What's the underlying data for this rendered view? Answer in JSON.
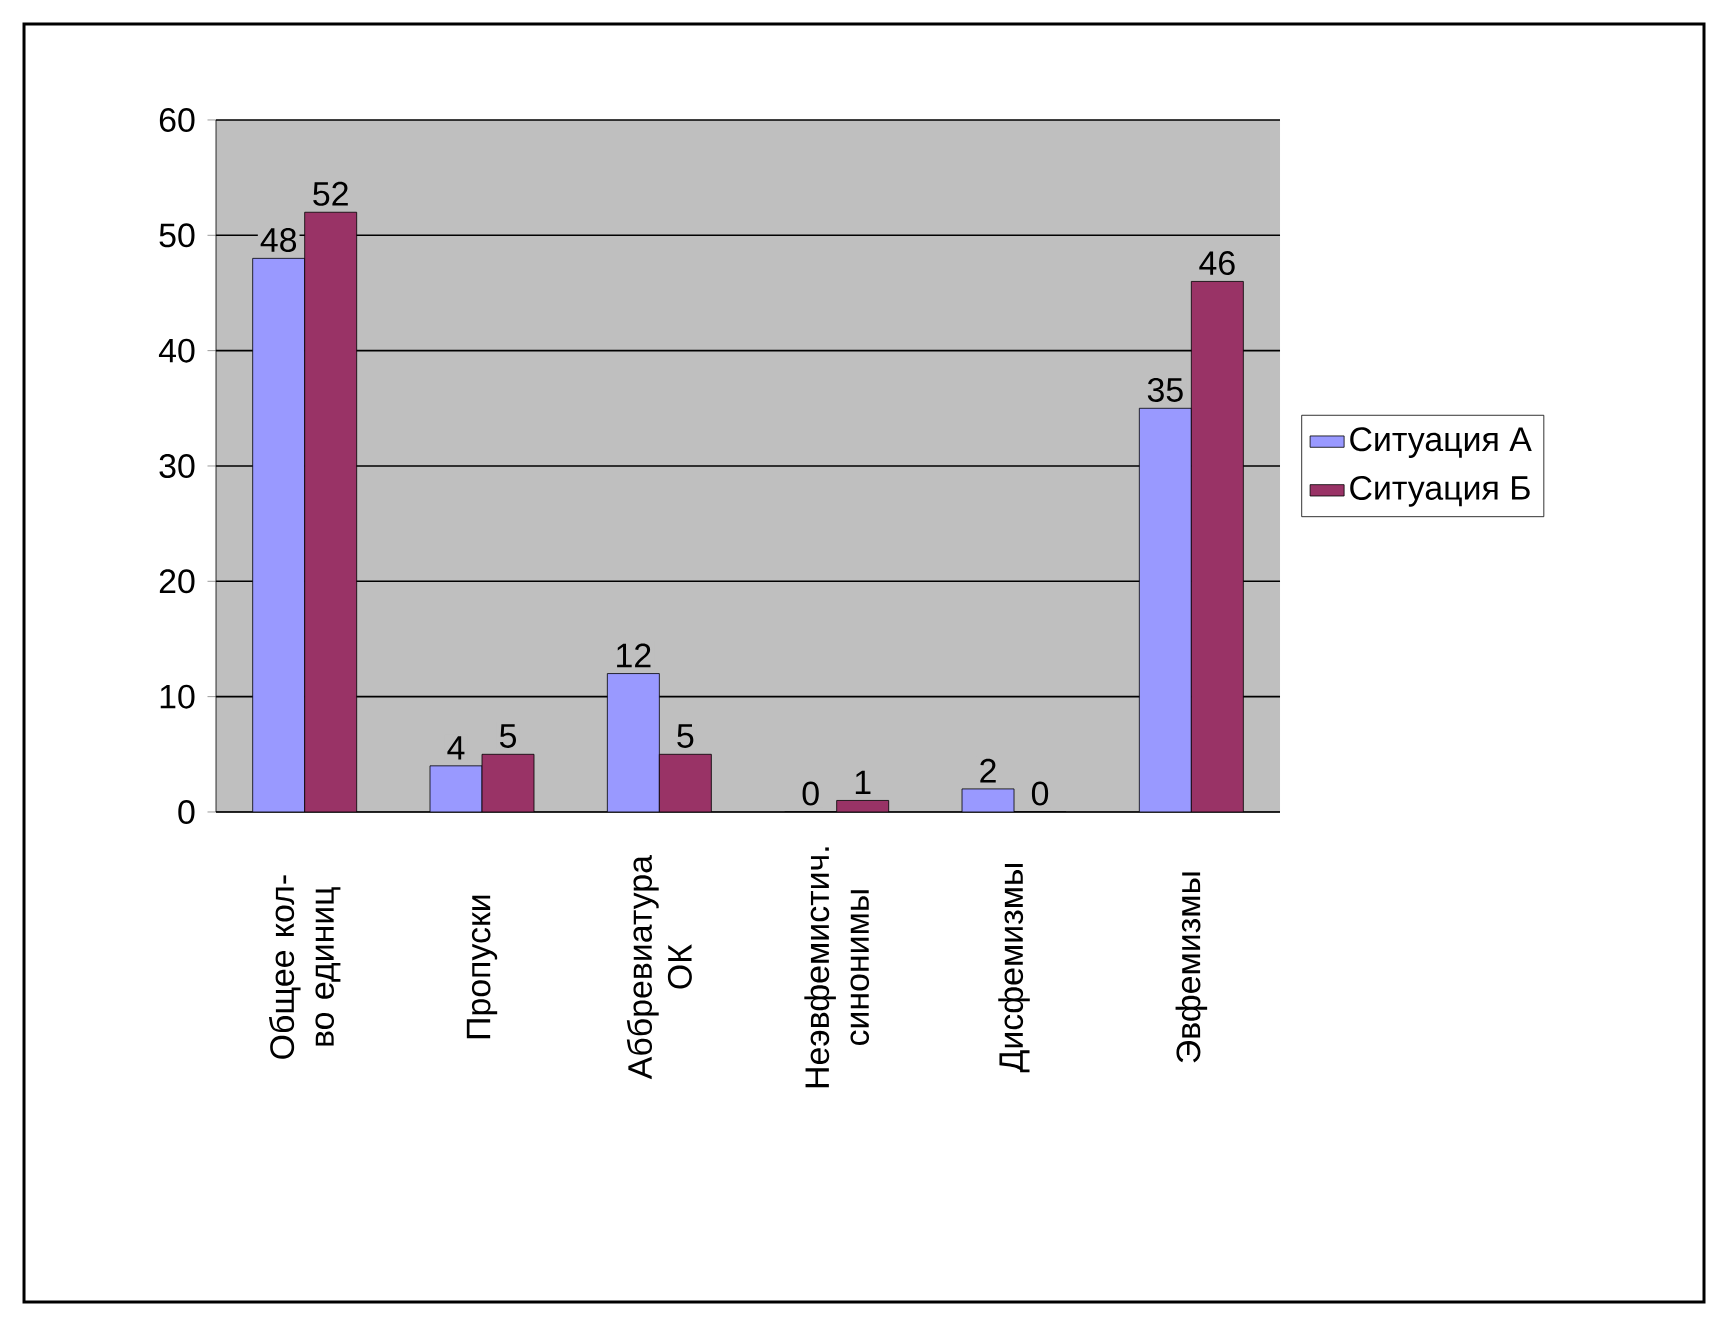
{
  "chart_data": {
    "type": "bar",
    "categories": [
      "Общее кол-во единиц",
      "Пропуски",
      "Аббревиатура ОК",
      "Неэвфемистич. синонимы",
      "Дисфемизмы",
      "Эвфемизмы"
    ],
    "series": [
      {
        "name": "Ситуация А",
        "color": "#9999ff",
        "values": [
          48,
          4,
          12,
          0,
          2,
          35
        ]
      },
      {
        "name": "Ситуация Б",
        "color": "#993366",
        "values": [
          52,
          5,
          5,
          1,
          0,
          46
        ]
      }
    ],
    "ylim": [
      0,
      60
    ],
    "yticks": [
      0,
      10,
      20,
      30,
      40,
      50,
      60
    ],
    "grid": "y",
    "legend": "right",
    "data_labels": true
  }
}
